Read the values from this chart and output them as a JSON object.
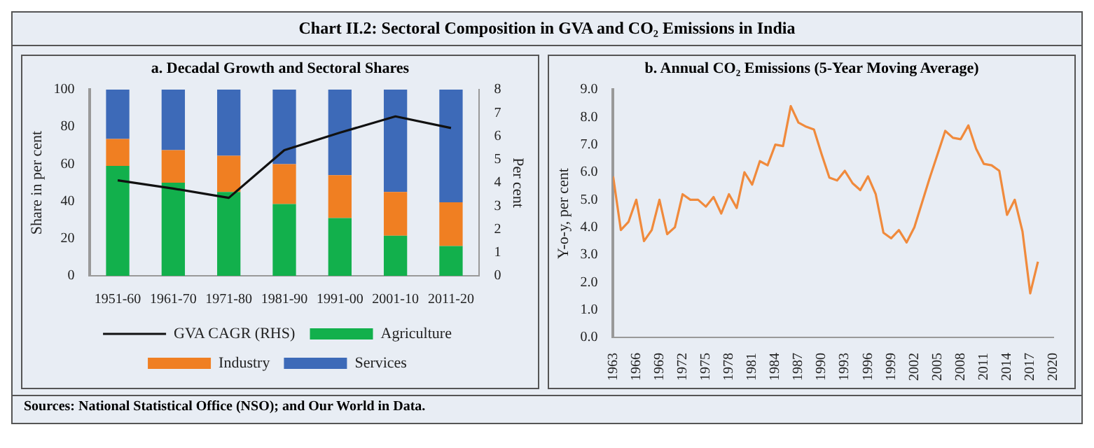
{
  "chart_data": [
    {
      "type": "bar",
      "title": "Chart II.2: Sectoral Composition in GVA and CO₂ Emissions in India",
      "subtitle": "a. Decadal Growth and Sectoral Shares",
      "ylabel": "Share in per cent",
      "y2label": "Per cent",
      "categories": [
        "1951-60",
        "1961-70",
        "1971-80",
        "1981-90",
        "1991-00",
        "2001-10",
        "2011-20"
      ],
      "stacked": true,
      "grid": false,
      "legend": "bottom",
      "ylim": [
        0,
        100
      ],
      "yticks": [
        0,
        20,
        40,
        60,
        80,
        100
      ],
      "y2lim": [
        0,
        8
      ],
      "y2ticks": [
        0,
        1,
        2,
        3,
        4,
        5,
        6,
        7,
        8
      ],
      "annotations": [
        "Sources: National Statistical Office (NSO); and Our World in Data."
      ],
      "series": [
        {
          "name": "Agriculture",
          "color": "#12b04c",
          "values": [
            59,
            50,
            45,
            38.5,
            31,
            21.5,
            16
          ]
        },
        {
          "name": "Industry",
          "color": "#f07f22",
          "values": [
            14.5,
            17.5,
            19.5,
            21.5,
            23,
            23.5,
            23.5
          ]
        },
        {
          "name": "Services",
          "color": "#3d6ab8",
          "values": [
            26.5,
            32.5,
            35.5,
            40,
            46,
            55,
            60.5
          ]
        },
        {
          "name": "GVA CAGR (RHS)",
          "type": "line",
          "axis": "y2",
          "color": "#111111",
          "marker": "none",
          "values": [
            4.1,
            3.75,
            3.35,
            5.4,
            6.15,
            6.85,
            6.35
          ]
        }
      ]
    },
    {
      "type": "line",
      "title": "b. Annual CO₂ Emissions (5-Year Moving Average)",
      "ylabel": "Y-o-y, per cent",
      "grid": false,
      "marker": "none",
      "xlim": [
        1963,
        2020
      ],
      "xticks": [
        1963,
        1966,
        1969,
        1972,
        1975,
        1978,
        1981,
        1984,
        1987,
        1990,
        1993,
        1996,
        1999,
        2002,
        2005,
        2008,
        2011,
        2014,
        2017,
        2020
      ],
      "ylim": [
        0,
        9
      ],
      "yticks": [
        {
          "value": 0,
          "label": "0.0"
        },
        {
          "value": 1,
          "label": "1.0"
        },
        {
          "value": 2,
          "label": "2.0"
        },
        {
          "value": 3,
          "label": "3.0"
        },
        {
          "value": 4,
          "label": "4.0"
        },
        {
          "value": 5,
          "label": "5.0"
        },
        {
          "value": 6,
          "label": "6.0"
        },
        {
          "value": 7,
          "label": "7.0"
        },
        {
          "value": 8,
          "label": "8.0"
        },
        {
          "value": 9,
          "label": "9.0"
        }
      ],
      "x": [
        1963,
        1964,
        1965,
        1966,
        1967,
        1968,
        1969,
        1970,
        1971,
        1972,
        1973,
        1974,
        1975,
        1976,
        1977,
        1978,
        1979,
        1980,
        1981,
        1982,
        1983,
        1984,
        1985,
        1986,
        1987,
        1988,
        1989,
        1990,
        1991,
        1992,
        1993,
        1994,
        1995,
        1996,
        1997,
        1998,
        1999,
        2000,
        2001,
        2002,
        2003,
        2004,
        2005,
        2006,
        2007,
        2008,
        2009,
        2010,
        2011,
        2012,
        2013,
        2014,
        2015,
        2016,
        2017,
        2018
      ],
      "series": [
        {
          "color": "#f08a3c",
          "values": [
            5.85,
            3.9,
            4.2,
            5.0,
            3.5,
            3.9,
            5.0,
            3.75,
            4.0,
            5.2,
            5.0,
            5.0,
            4.75,
            5.1,
            4.5,
            5.2,
            4.7,
            6.0,
            5.55,
            6.4,
            6.25,
            7.0,
            6.95,
            8.4,
            7.8,
            7.65,
            7.55,
            6.65,
            5.8,
            5.7,
            6.05,
            5.6,
            5.35,
            5.85,
            5.2,
            3.8,
            3.6,
            3.9,
            3.45,
            4.0,
            4.9,
            5.8,
            6.65,
            7.5,
            7.25,
            7.2,
            7.7,
            6.85,
            6.3,
            6.25,
            6.05,
            4.45,
            5.0,
            3.85,
            1.6,
            2.75
          ]
        }
      ]
    }
  ]
}
